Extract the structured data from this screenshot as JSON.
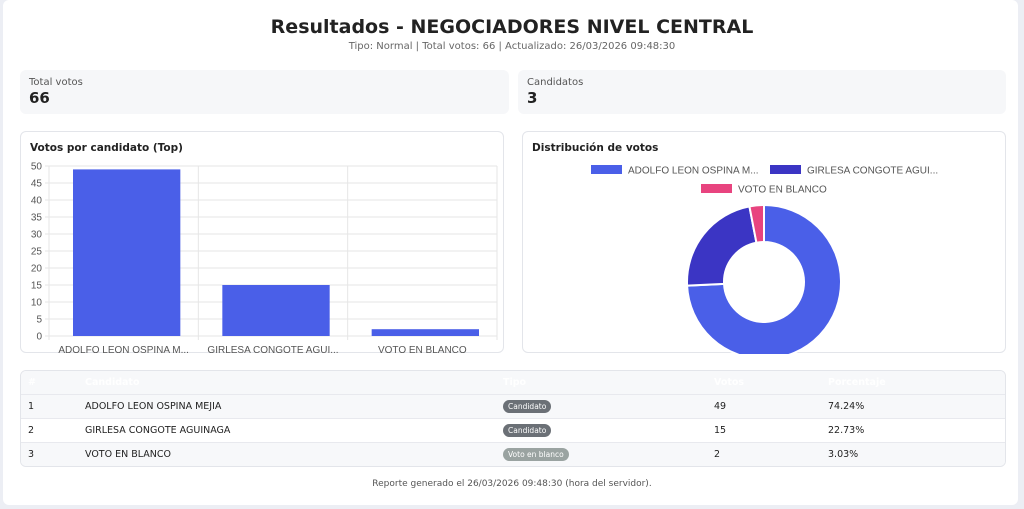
{
  "header": {
    "title": "Resultados - NEGOCIADORES NIVEL CENTRAL",
    "subtitle": "Tipo: Normal | Total votos: 66 | Actualizado: 26/03/2026 09:48:30"
  },
  "stats": [
    {
      "label": "Total votos",
      "value": "66"
    },
    {
      "label": "Candidatos",
      "value": "3"
    }
  ],
  "colors": {
    "blue": "#4a5fe8",
    "indigo": "#3b35c4",
    "pink": "#e8447f"
  },
  "chart_data": [
    {
      "type": "bar",
      "title": "Votos por candidato (Top)",
      "categories": [
        "ADOLFO LEON OSPINA M...",
        "GIRLESA CONGOTE AGUI...",
        "VOTO EN BLANCO"
      ],
      "values": [
        49,
        15,
        2
      ],
      "ylim": [
        0,
        50
      ],
      "yticks": [
        0,
        5,
        10,
        15,
        20,
        25,
        30,
        35,
        40,
        45,
        50
      ],
      "grid": true
    },
    {
      "type": "pie",
      "title": "Distribución de votos",
      "labels": [
        "ADOLFO LEON OSPINA M...",
        "GIRLESA CONGOTE AGUI...",
        "VOTO EN BLANCO"
      ],
      "values": [
        49,
        15,
        2
      ],
      "colors": [
        "#4a5fe8",
        "#3b35c4",
        "#e8447f"
      ],
      "legend": "top"
    }
  ],
  "table": {
    "headers": [
      "#",
      "Candidato",
      "Tipo",
      "Votos",
      "Porcentaje"
    ],
    "rows": [
      {
        "n": "1",
        "name": "ADOLFO LEON OSPINA MEJIA",
        "tipo": "Candidato",
        "votos": "49",
        "pct": "74.24%"
      },
      {
        "n": "2",
        "name": "GIRLESA CONGOTE AGUINAGA",
        "tipo": "Candidato",
        "votos": "15",
        "pct": "22.73%"
      },
      {
        "n": "3",
        "name": "VOTO EN BLANCO",
        "tipo": "Voto en blanco",
        "votos": "2",
        "pct": "3.03%"
      }
    ]
  },
  "footer": "Reporte generado el 26/03/2026 09:48:30 (hora del servidor)."
}
